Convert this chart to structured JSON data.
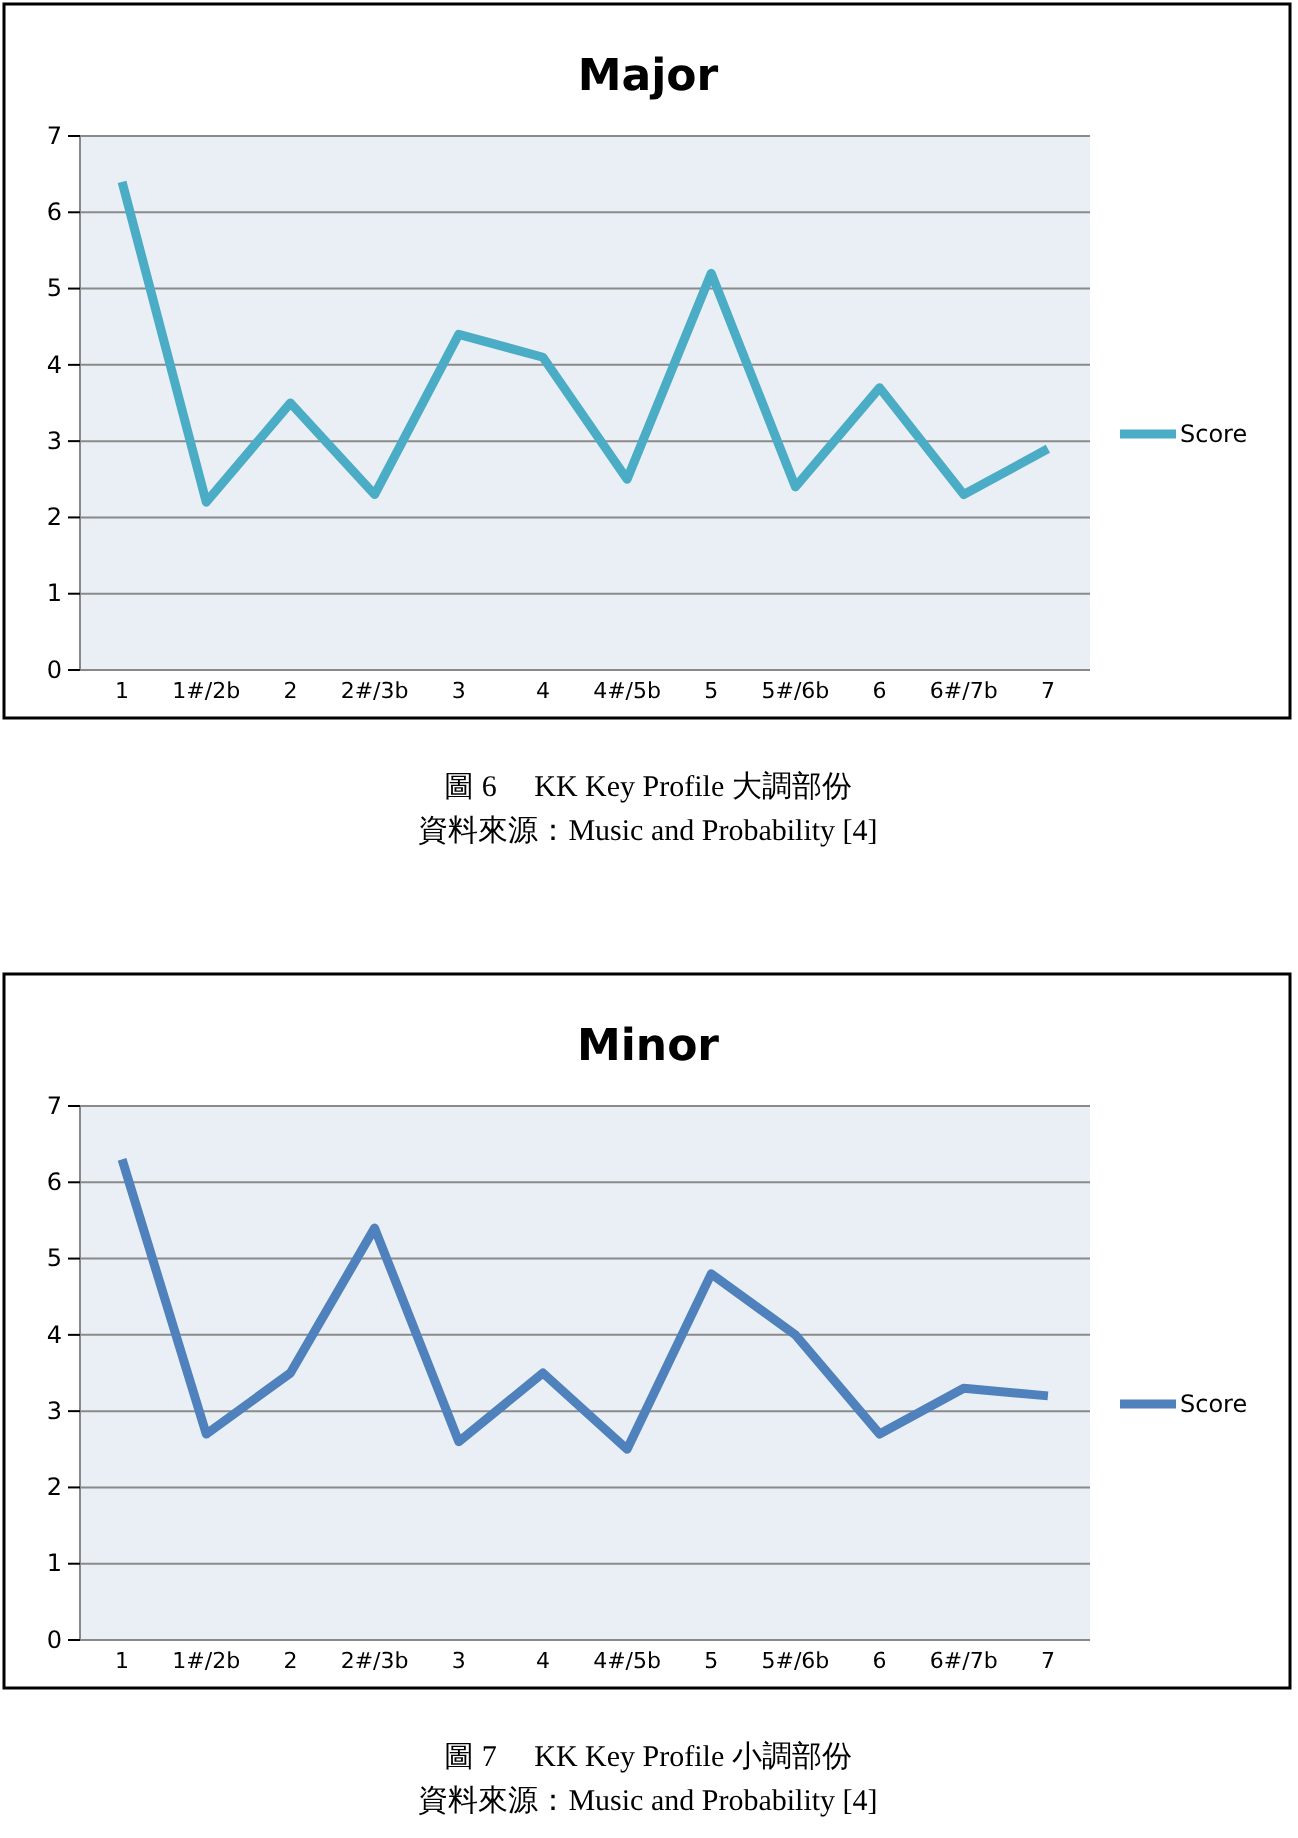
{
  "chart_data": [
    {
      "type": "line",
      "title": "Major",
      "categories": [
        "1",
        "1#/2b",
        "2",
        "2#/3b",
        "3",
        "4",
        "4#/5b",
        "5",
        "5#/6b",
        "6",
        "6#/7b",
        "7"
      ],
      "series": [
        {
          "name": "Score",
          "color": "#4bacc6",
          "values": [
            6.4,
            2.2,
            3.5,
            2.3,
            4.4,
            4.1,
            2.5,
            5.2,
            2.4,
            3.7,
            2.3,
            2.9
          ]
        }
      ],
      "ylim": [
        0,
        7
      ],
      "yticks": [
        0,
        1,
        2,
        3,
        4,
        5,
        6,
        7
      ],
      "grid": "y",
      "legend": "right",
      "marker": "none",
      "annotations": [
        "圖 6　 KK Key Profile 大調部份",
        "資料來源：Music and Probability [4]"
      ]
    },
    {
      "type": "line",
      "title": "Minor",
      "categories": [
        "1",
        "1#/2b",
        "2",
        "2#/3b",
        "3",
        "4",
        "4#/5b",
        "5",
        "5#/6b",
        "6",
        "6#/7b",
        "7"
      ],
      "series": [
        {
          "name": "Score",
          "color": "#4f81bd",
          "values": [
            6.3,
            2.7,
            3.5,
            5.4,
            2.6,
            3.5,
            2.5,
            4.8,
            4.0,
            2.7,
            3.3,
            3.2
          ]
        }
      ],
      "ylim": [
        0,
        7
      ],
      "yticks": [
        0,
        1,
        2,
        3,
        4,
        5,
        6,
        7
      ],
      "grid": "y",
      "legend": "right",
      "marker": "none",
      "annotations": [
        "圖 7　 KK Key Profile 小調部份",
        "資料來源：Music and Probability [4]"
      ]
    }
  ]
}
